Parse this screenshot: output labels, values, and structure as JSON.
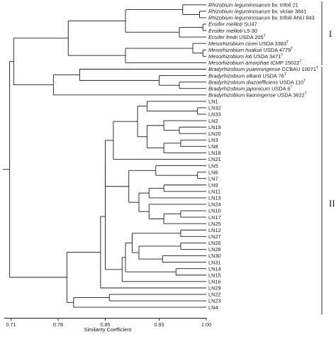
{
  "figure": {
    "axis": {
      "title": "Similarity Coefficient",
      "ticks": [
        "0.71",
        "0.78",
        "0.85",
        "0.93",
        "1.00"
      ]
    },
    "groups": [
      {
        "label": "I"
      },
      {
        "label": "II"
      }
    ],
    "leaves": [
      {
        "genus": "Rhizobium",
        "species": "leguminosarum",
        "rest": " bv. trifoli 21",
        "sup": ""
      },
      {
        "genus": "Rhizobium",
        "species": "leguminosarum",
        "rest": " bv. viciae 3841",
        "sup": ""
      },
      {
        "genus": "Rhizobium",
        "species": "leguminosarum",
        "rest": " bv. trifolii ANU 843",
        "sup": ""
      },
      {
        "genus": "Ensifer",
        "species": "meliloti",
        "rest": " SU47",
        "sup": ""
      },
      {
        "genus": "Ensifer",
        "species": "meliloti",
        "rest": " L5-30",
        "sup": ""
      },
      {
        "genus": "Ensifer",
        "species": "fredii",
        "rest": " USDA 205",
        "sup": "T"
      },
      {
        "genus": "Mesorhizobium",
        "species": "ciceri",
        "rest": " USDA 3383",
        "sup": "T"
      },
      {
        "genus": "Mesorhizobium",
        "species": "huakuii",
        "rest": " USDA 4779",
        "sup": "T"
      },
      {
        "genus": "Mesorhizobium",
        "species": "loti",
        "rest": " USDA 3471",
        "sup": "T"
      },
      {
        "genus": "Mesorhizobium",
        "species": "amorphae",
        "rest": " ICMP 15022",
        "sup": "T"
      },
      {
        "genus": "Bradyrhizobium",
        "species": "yuanmingense",
        "rest": " CCBAU 10071",
        "sup": "T"
      },
      {
        "genus": "Bradyrhizobium",
        "species": "elkanii",
        "rest": " USDA 76",
        "sup": "T"
      },
      {
        "genus": "Bradyrhizobium",
        "species": "diazoefficiens",
        "rest": " USDA 110",
        "sup": "T"
      },
      {
        "genus": "Bradyrhizobium",
        "species": "japonicum",
        "rest": " USDA 6",
        "sup": "T"
      },
      {
        "genus": "Bradyrhizobium",
        "species": "liaoningense",
        "rest": " USDA 3622",
        "sup": "T"
      },
      {
        "rest": "LN1"
      },
      {
        "rest": "LN32"
      },
      {
        "rest": "LN33"
      },
      {
        "rest": "LN2"
      },
      {
        "rest": "LN19"
      },
      {
        "rest": "LN20"
      },
      {
        "rest": "LN3"
      },
      {
        "rest": "LN8"
      },
      {
        "rest": "LN18"
      },
      {
        "rest": "LN21"
      },
      {
        "rest": "LN5"
      },
      {
        "rest": "LN6"
      },
      {
        "rest": "LN7"
      },
      {
        "rest": "LN9"
      },
      {
        "rest": "LN11"
      },
      {
        "rest": "LN13"
      },
      {
        "rest": "LN24"
      },
      {
        "rest": "LN10"
      },
      {
        "rest": "LN17"
      },
      {
        "rest": "LN25"
      },
      {
        "rest": "LN12"
      },
      {
        "rest": "LN27"
      },
      {
        "rest": "LN26"
      },
      {
        "rest": "LN28"
      },
      {
        "rest": "LN30"
      },
      {
        "rest": "LN31"
      },
      {
        "rest": "LN14"
      },
      {
        "rest": "LN15"
      },
      {
        "rest": "LN16"
      },
      {
        "rest": "LN29"
      },
      {
        "rest": "LN22"
      },
      {
        "rest": "LN23"
      },
      {
        "rest": "LN4"
      }
    ],
    "dendrogram": {
      "h": 0.708,
      "c": [
        {
          "h": 0.714,
          "c": [
            {
              "h": 0.795,
              "c": [
                {
                  "h": 0.88,
                  "c": [
                    {
                      "h": 0.965,
                      "c": [
                        {
                          "l": 0
                        },
                        {
                          "h": 0.99,
                          "c": [
                            {
                              "l": 1
                            },
                            {
                              "l": 2
                            }
                          ]
                        }
                      ]
                    },
                    {
                      "h": 0.96,
                      "c": [
                        {
                          "h": 0.995,
                          "c": [
                            {
                              "l": 3
                            },
                            {
                              "l": 4
                            }
                          ]
                        },
                        {
                          "l": 5
                        }
                      ]
                    }
                  ]
                },
                {
                  "h": 0.88,
                  "c": [
                    {
                      "h": 0.98,
                      "c": [
                        {
                          "l": 6
                        },
                        {
                          "h": 0.995,
                          "c": [
                            {
                              "l": 7
                            },
                            {
                              "l": 8
                            }
                          ]
                        }
                      ]
                    },
                    {
                      "l": 9
                    }
                  ]
                }
              ]
            },
            {
              "h": 0.773,
              "c": [
                {
                  "h": 0.812,
                  "c": [
                    {
                      "l": 10
                    },
                    {
                      "h": 0.93,
                      "c": [
                        {
                          "l": 11
                        },
                        {
                          "h": 0.96,
                          "c": [
                            {
                              "l": 12
                            },
                            {
                              "l": 13
                            }
                          ]
                        }
                      ]
                    }
                  ]
                },
                {
                  "l": 14
                }
              ]
            }
          ]
        },
        {
          "h": 0.793,
          "c": [
            {
              "h": 0.843,
              "c": [
                {
                  "h": 0.85,
                  "c": [
                    {
                      "h": 0.85,
                      "c": [
                        {
                          "h": 0.862,
                          "c": [
                            {
                              "h": 0.898,
                              "c": [
                                {
                                  "h": 0.912,
                                  "c": [
                                    {
                                      "l": 15
                                    },
                                    {
                                      "h": 0.987,
                                      "c": [
                                        {
                                          "l": 16
                                        },
                                        {
                                          "l": 17
                                        }
                                      ]
                                    }
                                  ]
                                },
                                {
                                  "h": 0.912,
                                  "c": [
                                    {
                                      "h": 0.937,
                                      "c": [
                                        {
                                          "l": 18
                                        },
                                        {
                                          "h": 0.96,
                                          "c": [
                                            {
                                              "l": 19
                                            },
                                            {
                                              "l": 20
                                            }
                                          ]
                                        }
                                      ]
                                    },
                                    {
                                      "h": 0.937,
                                      "c": [
                                        {
                                          "h": 0.962,
                                          "c": [
                                            {
                                              "l": 21
                                            },
                                            {
                                              "l": 22
                                            }
                                          ]
                                        },
                                        {
                                          "l": 23
                                        }
                                      ]
                                    }
                                  ]
                                }
                              ]
                            },
                            {
                              "l": 24
                            }
                          ]
                        },
                        {
                          "h": 0.885,
                          "c": [
                            {
                              "h": 0.925,
                              "c": [
                                {
                                  "l": 25
                                },
                                {
                                  "h": 0.987,
                                  "c": [
                                    {
                                      "l": 26
                                    },
                                    {
                                      "l": 27
                                    }
                                  ]
                                }
                              ]
                            },
                            {
                              "h": 0.9,
                              "c": [
                                {
                                  "h": 0.915,
                                  "c": [
                                    {
                                      "h": 0.937,
                                      "c": [
                                        {
                                          "l": 28
                                        },
                                        {
                                          "l": 29
                                        }
                                      ]
                                    },
                                    {
                                      "l": 30
                                    }
                                  ]
                                },
                                {
                                  "h": 0.915,
                                  "c": [
                                    {
                                      "l": 31
                                    },
                                    {
                                      "h": 0.937,
                                      "c": [
                                        {
                                          "h": 0.962,
                                          "c": [
                                            {
                                              "l": 32
                                            },
                                            {
                                              "l": 33
                                            }
                                          ]
                                        },
                                        {
                                          "l": 34
                                        }
                                      ]
                                    }
                                  ]
                                }
                              ]
                            }
                          ]
                        }
                      ]
                    },
                    {
                      "h": 0.875,
                      "c": [
                        {
                          "h": 0.88,
                          "c": [
                            {
                              "h": 0.89,
                              "c": [
                                {
                                  "h": 0.962,
                                  "c": [
                                    {
                                      "l": 35
                                    },
                                    {
                                      "l": 36
                                    }
                                  ]
                                },
                                {
                                  "h": 0.9,
                                  "c": [
                                    {
                                      "h": 0.962,
                                      "c": [
                                        {
                                          "l": 37
                                        },
                                        {
                                          "l": 38
                                        }
                                      ]
                                    },
                                    {
                                      "h": 0.935,
                                      "c": [
                                        {
                                          "l": 39
                                        },
                                        {
                                          "l": 40
                                        }
                                      ]
                                    }
                                  ]
                                }
                              ]
                            },
                            {
                              "h": 0.955,
                              "c": [
                                {
                                  "l": 41
                                },
                                {
                                  "l": 42
                                }
                              ]
                            }
                          ]
                        },
                        {
                          "l": 43
                        }
                      ]
                    }
                  ]
                },
                {
                  "l": 44
                }
              ]
            },
            {
              "h": 0.803,
              "c": [
                {
                  "h": 0.856,
                  "c": [
                    {
                      "l": 45
                    },
                    {
                      "l": 46
                    }
                  ]
                },
                {
                  "l": 47
                }
              ]
            }
          ]
        }
      ]
    }
  }
}
